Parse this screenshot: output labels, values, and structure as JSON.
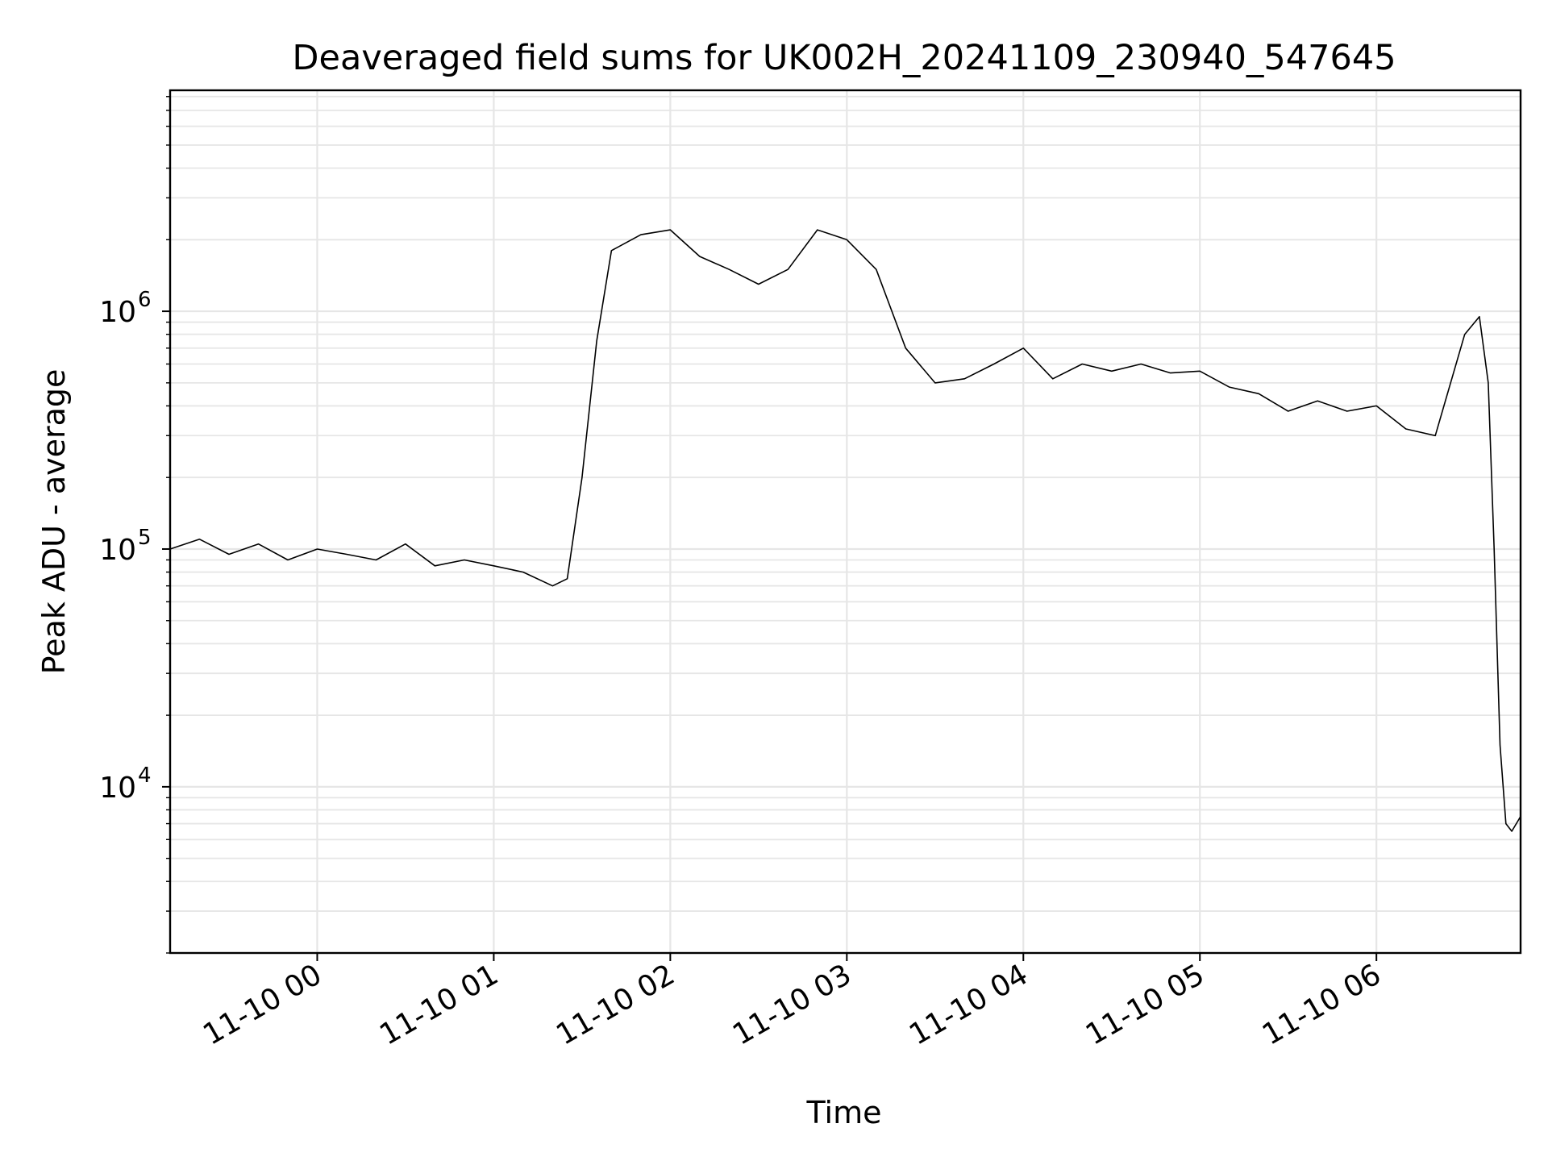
{
  "chart_data": {
    "type": "line",
    "title": "Deaveraged field sums for UK002H_20241109_230940_547645",
    "xlabel": "Time",
    "ylabel": "Peak ADU - average",
    "y_scale": "log",
    "ylim": [
      2000,
      8500000
    ],
    "xlim": [
      "2024-11-09 23:10",
      "2024-11-10 06:49"
    ],
    "x_ticks": [
      {
        "value": "2024-11-10 00:00",
        "label": "11-10 00"
      },
      {
        "value": "2024-11-10 01:00",
        "label": "11-10 01"
      },
      {
        "value": "2024-11-10 02:00",
        "label": "11-10 02"
      },
      {
        "value": "2024-11-10 03:00",
        "label": "11-10 03"
      },
      {
        "value": "2024-11-10 04:00",
        "label": "11-10 04"
      },
      {
        "value": "2024-11-10 05:00",
        "label": "11-10 05"
      },
      {
        "value": "2024-11-10 06:00",
        "label": "11-10 06"
      }
    ],
    "y_ticks": [
      {
        "value": 10000,
        "base": "10",
        "exp": "4"
      },
      {
        "value": 100000,
        "base": "10",
        "exp": "5"
      },
      {
        "value": 1000000,
        "base": "10",
        "exp": "6"
      }
    ],
    "grid": true,
    "line_color": "#000000",
    "series": [
      {
        "x": [
          "2024-11-09 23:10",
          "2024-11-09 23:20",
          "2024-11-09 23:30",
          "2024-11-09 23:40",
          "2024-11-09 23:50",
          "2024-11-10 00:00",
          "2024-11-10 00:10",
          "2024-11-10 00:20",
          "2024-11-10 00:30",
          "2024-11-10 00:40",
          "2024-11-10 00:50",
          "2024-11-10 01:00",
          "2024-11-10 01:10",
          "2024-11-10 01:20",
          "2024-11-10 01:25",
          "2024-11-10 01:30",
          "2024-11-10 01:35",
          "2024-11-10 01:40",
          "2024-11-10 01:50",
          "2024-11-10 02:00",
          "2024-11-10 02:10",
          "2024-11-10 02:20",
          "2024-11-10 02:30",
          "2024-11-10 02:40",
          "2024-11-10 02:50",
          "2024-11-10 03:00",
          "2024-11-10 03:10",
          "2024-11-10 03:20",
          "2024-11-10 03:30",
          "2024-11-10 03:40",
          "2024-11-10 03:50",
          "2024-11-10 04:00",
          "2024-11-10 04:10",
          "2024-11-10 04:20",
          "2024-11-10 04:30",
          "2024-11-10 04:40",
          "2024-11-10 04:50",
          "2024-11-10 05:00",
          "2024-11-10 05:10",
          "2024-11-10 05:20",
          "2024-11-10 05:30",
          "2024-11-10 05:40",
          "2024-11-10 05:50",
          "2024-11-10 06:00",
          "2024-11-10 06:10",
          "2024-11-10 06:20",
          "2024-11-10 06:30",
          "2024-11-10 06:35",
          "2024-11-10 06:38",
          "2024-11-10 06:40",
          "2024-11-10 06:42",
          "2024-11-10 06:44",
          "2024-11-10 06:46",
          "2024-11-10 06:49"
        ],
        "y": [
          100000,
          110000,
          95000,
          105000,
          90000,
          100000,
          95000,
          90000,
          105000,
          85000,
          90000,
          85000,
          80000,
          70000,
          75000,
          200000,
          750000,
          1800000,
          2100000,
          2200000,
          1700000,
          1500000,
          1300000,
          1500000,
          2200000,
          2000000,
          1500000,
          700000,
          500000,
          520000,
          600000,
          700000,
          520000,
          600000,
          560000,
          600000,
          550000,
          560000,
          480000,
          450000,
          380000,
          420000,
          380000,
          400000,
          320000,
          300000,
          800000,
          950000,
          500000,
          100000,
          15000,
          7000,
          6500,
          7500
        ]
      }
    ]
  }
}
